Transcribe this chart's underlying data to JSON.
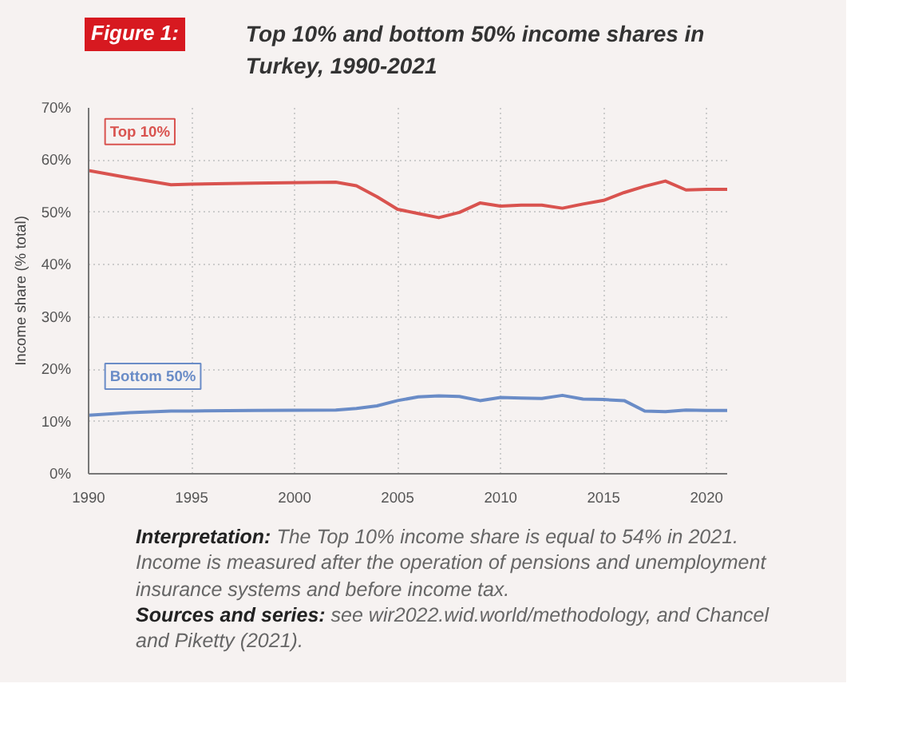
{
  "chart_data": {
    "type": "line",
    "title": "Top 10% and bottom 50% income shares in Turkey, 1990-2021",
    "ylabel": "Income share (% total)",
    "annotations": [
      "Figure 1:",
      "Interpretation: The Top 10% income share is equal to 54% in 2021. Income is measured after the operation of pensions and unemployment insurance systems and before income tax.",
      "Sources and series: see wir2022.wid.world/methodology, and Chancel and Piketty (2021)."
    ],
    "x": [
      1990,
      1992,
      1994,
      1995,
      1998,
      2002,
      2003,
      2004,
      2005,
      2006,
      2007,
      2008,
      2009,
      2010,
      2011,
      2012,
      2013,
      2014,
      2015,
      2016,
      2017,
      2018,
      2019,
      2020,
      2021
    ],
    "series": [
      {
        "name": "Top 10%",
        "color": "#d9534f",
        "values": [
          58,
          56.6,
          55.3,
          55.4,
          55.6,
          55.8,
          55.1,
          53,
          50.6,
          49.8,
          49,
          50,
          51.8,
          51.2,
          51.4,
          51.4,
          50.8,
          51.6,
          52.3,
          53.8,
          55,
          56,
          54.3,
          54.4,
          54.4
        ]
      },
      {
        "name": "Bottom 50%",
        "color": "#6a8cc7",
        "values": [
          11.2,
          11.7,
          12,
          12,
          12.1,
          12.2,
          12.5,
          13,
          14,
          14.7,
          14.9,
          14.8,
          14,
          14.6,
          14.5,
          14.4,
          15,
          14.3,
          14.2,
          14,
          12,
          11.9,
          12.2,
          12.1,
          12.1
        ]
      }
    ],
    "xlim": [
      1990,
      2021
    ],
    "ylim": [
      0,
      70
    ],
    "xticks": [
      1990,
      1995,
      2000,
      2005,
      2010,
      2015,
      2020
    ],
    "yticks": [
      {
        "value": 0,
        "label": "0%"
      },
      {
        "value": 10,
        "label": "10%"
      },
      {
        "value": 20,
        "label": "20%"
      },
      {
        "value": 30,
        "label": "30%"
      },
      {
        "value": 40,
        "label": "40%"
      },
      {
        "value": 50,
        "label": "50%"
      },
      {
        "value": 60,
        "label": "60%"
      },
      {
        "value": 70,
        "label": "70%"
      }
    ],
    "grid": true,
    "marker": "none",
    "line_style": "solid"
  }
}
